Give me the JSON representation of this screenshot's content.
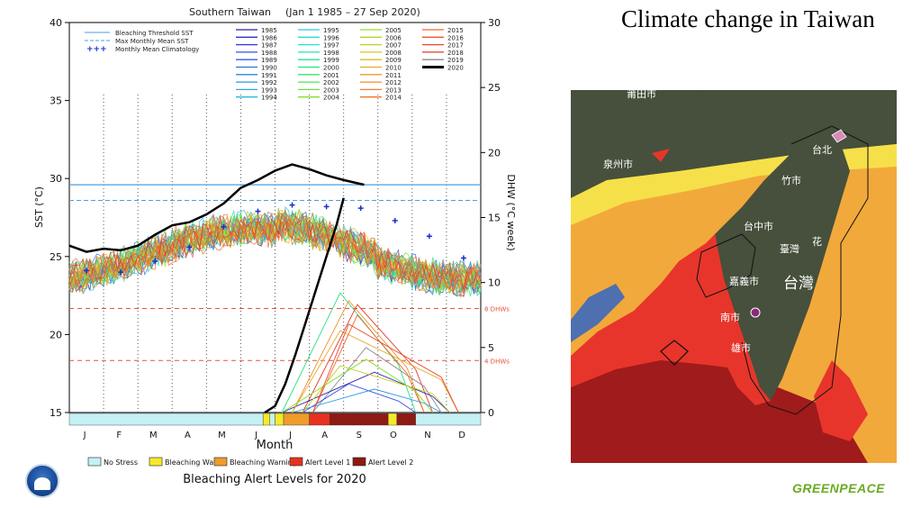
{
  "slide": {
    "title": "Climate change in Taiwan",
    "brand": "GREENPEACE"
  },
  "map": {
    "labels": [
      "莆田市",
      "泉州市",
      "台北",
      "竹市",
      "台中市",
      "臺灣",
      "花",
      "嘉義市",
      "台灣",
      "南市",
      "雄市"
    ],
    "colors": {
      "no_stress": "#4e6fb0",
      "watch": "#f6e04a",
      "warning": "#f2a93b",
      "alert1": "#e8352b",
      "alert2": "#a01b1b",
      "land": "#46503c"
    }
  },
  "chart_data": {
    "type": "line",
    "title": "Southern Taiwan",
    "date_range": "(Jan 1 1985 – 27 Sep 2020)",
    "xlabel": "Month",
    "ylabel_left": "SST (°C)",
    "ylabel_right": "DHW (°C week)",
    "x_ticks": [
      "J",
      "F",
      "M",
      "A",
      "M",
      "J",
      "J",
      "A",
      "S",
      "O",
      "N",
      "D"
    ],
    "y_left_ticks": [
      15,
      20,
      25,
      30,
      35,
      40
    ],
    "y_left_range": [
      15,
      40
    ],
    "y_right_ticks": [
      0,
      5,
      10,
      15,
      20,
      25,
      30
    ],
    "y_right_range": [
      0,
      30
    ],
    "grid": "dotted vertical month lines",
    "reference_lines": {
      "bleaching_threshold_sst": 29.6,
      "max_monthly_mean_sst": 28.6,
      "dhw_8_label": "8 DHWs",
      "dhw_4_label": "4 DHWs",
      "dhw_8_level": 8,
      "dhw_4_level": 4
    },
    "legend_left": [
      {
        "label": "Bleaching Threshold SST",
        "color": "#4a9fe0",
        "style": "solid"
      },
      {
        "label": "Max Monthly Mean SST",
        "color": "#4a9fe0",
        "style": "dashed"
      },
      {
        "label": "Monthly Mean Climatology",
        "color": "#1a2fd0",
        "style": "plus"
      }
    ],
    "legend_years": [
      {
        "year": "1985",
        "color": "#2a1fa8"
      },
      {
        "year": "1986",
        "color": "#2f2fc8"
      },
      {
        "year": "1987",
        "color": "#3535d8"
      },
      {
        "year": "1988",
        "color": "#3a4fe0"
      },
      {
        "year": "1989",
        "color": "#2f5fe0"
      },
      {
        "year": "1990",
        "color": "#2a73e0"
      },
      {
        "year": "1991",
        "color": "#2a86e0"
      },
      {
        "year": "1992",
        "color": "#2a9ae0"
      },
      {
        "year": "1993",
        "color": "#2aa9e0"
      },
      {
        "year": "1994",
        "color": "#2ab8e0"
      },
      {
        "year": "1995",
        "color": "#2ac8e0"
      },
      {
        "year": "1996",
        "color": "#2ad8d8"
      },
      {
        "year": "1997",
        "color": "#2ae0c8"
      },
      {
        "year": "1998",
        "color": "#2ae0b0"
      },
      {
        "year": "1999",
        "color": "#2ae09a"
      },
      {
        "year": "2000",
        "color": "#2ae080"
      },
      {
        "year": "2001",
        "color": "#3fe06a"
      },
      {
        "year": "2002",
        "color": "#55e055"
      },
      {
        "year": "2003",
        "color": "#6ae040"
      },
      {
        "year": "2004",
        "color": "#80e02a"
      },
      {
        "year": "2005",
        "color": "#96e02a"
      },
      {
        "year": "2006",
        "color": "#acd82a"
      },
      {
        "year": "2007",
        "color": "#c2d02a"
      },
      {
        "year": "2008",
        "color": "#d4c62a"
      },
      {
        "year": "2009",
        "color": "#e0b82a"
      },
      {
        "year": "2010",
        "color": "#e8aa2a"
      },
      {
        "year": "2011",
        "color": "#ee9c2a"
      },
      {
        "year": "2012",
        "color": "#f28e2a"
      },
      {
        "year": "2013",
        "color": "#f4802a"
      },
      {
        "year": "2014",
        "color": "#f4722a"
      },
      {
        "year": "2015",
        "color": "#f4642a"
      },
      {
        "year": "2016",
        "color": "#f0562a"
      },
      {
        "year": "2017",
        "color": "#ea482a"
      },
      {
        "year": "2018",
        "color": "#e43a2a"
      },
      {
        "year": "2019",
        "color": "#8a8a8a"
      },
      {
        "year": "2020",
        "color": "#000000"
      }
    ],
    "series_2020_sst": {
      "name": "2020",
      "x_month": [
        0,
        0.5,
        1.0,
        1.5,
        2.0,
        2.5,
        3.0,
        3.5,
        4.0,
        4.5,
        5.0,
        5.5,
        6.0,
        6.5,
        7.0,
        7.5,
        8.0,
        8.6
      ],
      "y": [
        25.7,
        25.3,
        25.5,
        25.4,
        25.7,
        26.4,
        27.0,
        27.2,
        27.7,
        28.4,
        29.4,
        29.9,
        30.5,
        30.9,
        30.6,
        30.2,
        29.9,
        29.6
      ]
    },
    "series_2020_dhw": {
      "name": "2020",
      "x_month": [
        5.7,
        6.0,
        6.3,
        6.6,
        6.9,
        7.2,
        7.5,
        7.8,
        8.0
      ],
      "y": [
        0,
        0.5,
        2.2,
        4.5,
        7.0,
        9.5,
        12.0,
        14.5,
        16.5
      ]
    },
    "climatology_sst": {
      "x_month": [
        0.5,
        1.5,
        2.5,
        3.5,
        4.5,
        5.5,
        6.5,
        7.5,
        8.5,
        9.5,
        10.5,
        11.5
      ],
      "y": [
        24.1,
        24.0,
        24.7,
        25.6,
        26.9,
        27.9,
        28.3,
        28.2,
        28.1,
        27.3,
        26.3,
        24.9
      ]
    },
    "historical_dhw_peaks": [
      {
        "color": "#2ae080",
        "peak": 9.2
      },
      {
        "color": "#f28e2a",
        "peak": 8.6
      },
      {
        "color": "#e43a2a",
        "peak": 8.3
      },
      {
        "color": "#8a8a8a",
        "peak": 5.0
      },
      {
        "color": "#2a1fa8",
        "peak": 3.1
      },
      {
        "color": "#e8aa2a",
        "peak": 6.3
      },
      {
        "color": "#3a4fe0",
        "peak": 2.2
      },
      {
        "color": "#f4642a",
        "peak": 7.5
      },
      {
        "color": "#80e02a",
        "peak": 4.1
      },
      {
        "color": "#2a9ae0",
        "peak": 1.8
      },
      {
        "color": "#c2d02a",
        "peak": 3.6
      },
      {
        "color": "#ea482a",
        "peak": 6.8
      }
    ],
    "alert_bar": {
      "title": "Bleaching Alert Levels for 2020",
      "legend": [
        {
          "label": "No Stress",
          "color": "#c4f1f6"
        },
        {
          "label": "Bleaching Watch",
          "color": "#f4ea2a"
        },
        {
          "label": "Bleaching Warning",
          "color": "#ee9c2a"
        },
        {
          "label": "Alert Level 1",
          "color": "#e6321e"
        },
        {
          "label": "Alert Level 2",
          "color": "#8e1a14"
        }
      ],
      "segments": [
        {
          "from": 0,
          "to": 5.65,
          "level": 0
        },
        {
          "from": 5.65,
          "to": 5.85,
          "level": 1
        },
        {
          "from": 5.85,
          "to": 6.0,
          "level": 0
        },
        {
          "from": 6.0,
          "to": 6.25,
          "level": 1
        },
        {
          "from": 6.25,
          "to": 7.0,
          "level": 2
        },
        {
          "from": 7.0,
          "to": 7.6,
          "level": 3
        },
        {
          "from": 7.6,
          "to": 9.3,
          "level": 4
        },
        {
          "from": 9.3,
          "to": 9.55,
          "level": 1
        },
        {
          "from": 9.55,
          "to": 10.1,
          "level": 4
        },
        {
          "from": 10.1,
          "to": 12,
          "level": 0
        }
      ]
    }
  }
}
